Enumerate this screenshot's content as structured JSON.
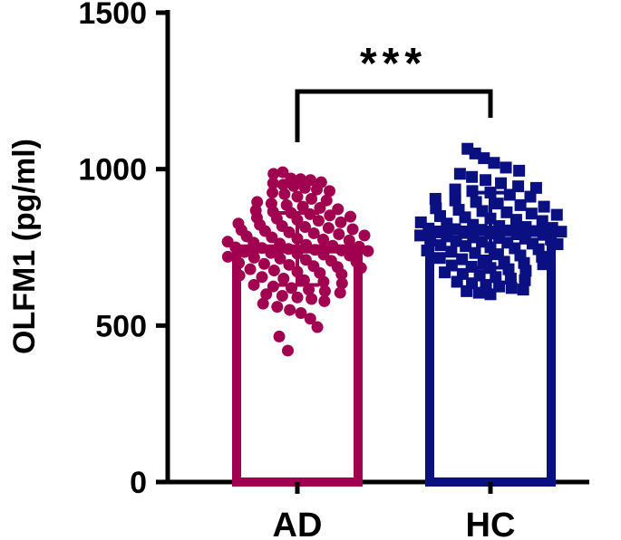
{
  "chart_data": {
    "type": "bar",
    "categories": [
      "AD",
      "HC"
    ],
    "ylabel": "OLFM1 (pg/ml)",
    "ylim": [
      0,
      1500
    ],
    "yticks": [
      0,
      500,
      1000,
      1500
    ],
    "significance": "***",
    "series": [
      {
        "category": "AD",
        "mean": 745,
        "sd": 115,
        "color": "#a0004f",
        "marker": "circle",
        "points": [
          985,
          990,
          970,
          968,
          965,
          958,
          955,
          950,
          946,
          940,
          935,
          930,
          925,
          920,
          912,
          905,
          900,
          895,
          890,
          885,
          880,
          876,
          872,
          868,
          864,
          860,
          856,
          852,
          848,
          845,
          842,
          838,
          835,
          830,
          826,
          822,
          818,
          815,
          812,
          808,
          805,
          802,
          798,
          795,
          792,
          788,
          785,
          782,
          778,
          775,
          772,
          768,
          765,
          762,
          758,
          755,
          752,
          750,
          748,
          745,
          742,
          740,
          738,
          735,
          732,
          730,
          727,
          724,
          720,
          717,
          714,
          710,
          707,
          704,
          700,
          697,
          694,
          690,
          687,
          684,
          680,
          676,
          672,
          668,
          664,
          660,
          655,
          650,
          645,
          640,
          635,
          630,
          625,
          620,
          615,
          610,
          605,
          600,
          595,
          590,
          585,
          578,
          570,
          560,
          550,
          540,
          522,
          495,
          465,
          420
        ]
      },
      {
        "category": "HC",
        "mean": 805,
        "sd": 120,
        "color": "#0a0f82",
        "marker": "square",
        "points": [
          1065,
          1050,
          1035,
          1020,
          1005,
          995,
          985,
          975,
          965,
          955,
          945,
          940,
          935,
          930,
          925,
          918,
          912,
          905,
          900,
          895,
          890,
          885,
          880,
          875,
          870,
          866,
          862,
          858,
          854,
          850,
          846,
          842,
          838,
          834,
          830,
          826,
          822,
          818,
          815,
          812,
          810,
          808,
          806,
          804,
          802,
          800,
          798,
          796,
          794,
          792,
          790,
          788,
          785,
          782,
          780,
          778,
          775,
          772,
          770,
          768,
          765,
          762,
          760,
          757,
          754,
          750,
          747,
          744,
          740,
          736,
          732,
          728,
          724,
          720,
          716,
          712,
          708,
          704,
          700,
          696,
          692,
          688,
          684,
          680,
          675,
          670,
          665,
          660,
          655,
          650,
          645,
          640,
          635,
          630,
          625,
          620,
          615,
          610,
          605,
          600
        ]
      }
    ]
  }
}
